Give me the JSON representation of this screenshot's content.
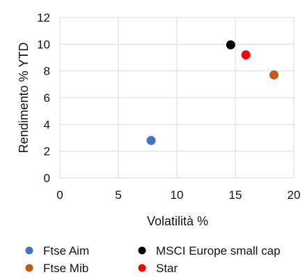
{
  "chart_data": {
    "type": "scatter",
    "xlabel": "Volatilità %",
    "ylabel": "Rendimento % YTD",
    "xlim": [
      0,
      20
    ],
    "ylim": [
      0,
      12
    ],
    "xticks": [
      0,
      5,
      10,
      15,
      20
    ],
    "yticks": [
      0,
      2,
      4,
      6,
      8,
      10,
      12
    ],
    "grid": true,
    "legend_position": "bottom",
    "series": [
      {
        "name": "Ftse Aim",
        "color": "#4472c4",
        "points": [
          {
            "x": 7.8,
            "y": 2.8
          }
        ]
      },
      {
        "name": "Ftse Mib",
        "color": "#c55a11",
        "points": [
          {
            "x": 18.3,
            "y": 7.7
          }
        ]
      },
      {
        "name": "MSCI Europe small cap",
        "color": "#000000",
        "points": [
          {
            "x": 14.6,
            "y": 9.95
          }
        ]
      },
      {
        "name": "Star",
        "color": "#ff0000",
        "points": [
          {
            "x": 15.9,
            "y": 9.2
          }
        ]
      }
    ]
  }
}
